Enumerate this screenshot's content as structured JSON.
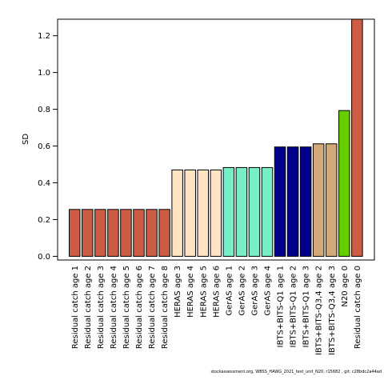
{
  "chart_data": {
    "type": "bar",
    "ylabel": "SD",
    "xlabel": "",
    "title": "",
    "ylim": [
      -0.02,
      1.29
    ],
    "yticks": [
      "0.0",
      "0.2",
      "0.4",
      "0.6",
      "0.8",
      "1.0",
      "1.2"
    ],
    "categories": [
      "Residual catch age 1",
      "Residual catch age 2",
      "Residual catch age 3",
      "Residual catch age 4",
      "Residual catch age 5",
      "Residual catch age 6",
      "Residual catch age 7",
      "Residual catch age 8",
      "HERAS age 3",
      "HERAS age 4",
      "HERAS age 5",
      "HERAS age 6",
      "GerAS age 1",
      "GerAS age 2",
      "GerAS age 3",
      "GerAS age 4",
      "IBTS+BITS-Q1 age 1",
      "IBTS+BITS-Q1 age 2",
      "IBTS+BITS-Q1 age 3",
      "IBTS+BITS-Q3,4 age 2",
      "IBTS+BITS-Q3,4 age 3",
      "N20 age 0",
      "Residual catch age 0"
    ],
    "values": [
      0.255,
      0.255,
      0.255,
      0.255,
      0.255,
      0.255,
      0.255,
      0.255,
      0.47,
      0.47,
      0.47,
      0.47,
      0.483,
      0.483,
      0.483,
      0.483,
      0.595,
      0.595,
      0.595,
      0.612,
      0.612,
      0.793,
      1.29
    ],
    "colors": [
      "#cd5c45",
      "#cd5c45",
      "#cd5c45",
      "#cd5c45",
      "#cd5c45",
      "#cd5c45",
      "#cd5c45",
      "#cd5c45",
      "#ffe4c4",
      "#ffe4c4",
      "#ffe4c4",
      "#ffe4c4",
      "#76eec6",
      "#76eec6",
      "#76eec6",
      "#76eec6",
      "#00008b",
      "#00008b",
      "#00008b",
      "#d2aa7a",
      "#d2aa7a",
      "#66cd00",
      "#cd5c45"
    ],
    "grid": false,
    "legend": "none"
  },
  "footer": "stockassessment.org, WBSS_HAWG_2021_test_unit_N20, r15682 , git: c28bdc2a44ad"
}
